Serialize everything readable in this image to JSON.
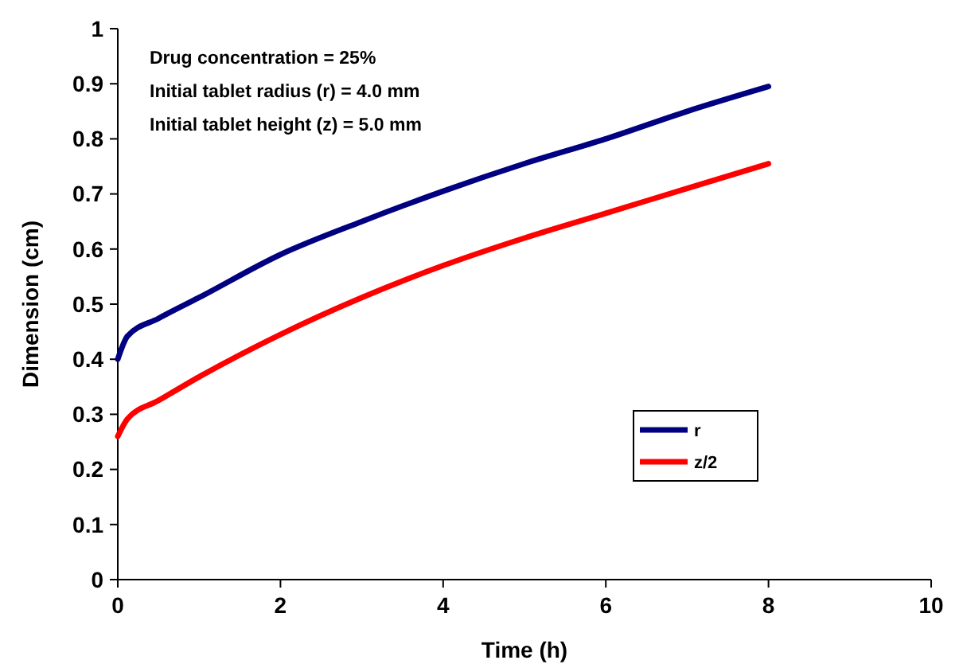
{
  "chart_data": {
    "type": "line",
    "xlabel": "Time (h)",
    "ylabel": "Dimension (cm)",
    "annotations": [
      "Drug concentration = 25%",
      "Initial tablet radius (r) = 4.0 mm",
      "Initial tablet height (z) = 5.0 mm"
    ],
    "x": [
      0,
      0.12,
      0.5,
      1,
      2,
      3,
      4,
      5,
      6,
      7,
      8
    ],
    "series": [
      {
        "name": "r",
        "color": "#000080",
        "values": [
          0.4,
          0.442,
          0.474,
          0.512,
          0.59,
          0.65,
          0.705,
          0.755,
          0.8,
          0.85,
          0.895
        ]
      },
      {
        "name": "z/2",
        "color": "#ff0000",
        "values": [
          0.26,
          0.292,
          0.325,
          0.368,
          0.445,
          0.512,
          0.57,
          0.62,
          0.665,
          0.71,
          0.755
        ]
      }
    ],
    "xlim": [
      0,
      10
    ],
    "xticks": [
      0,
      2,
      4,
      6,
      8,
      10
    ],
    "ylim": [
      0,
      1
    ],
    "yticks": [
      0,
      0.1,
      0.2,
      0.3,
      0.4,
      0.5,
      0.6,
      0.7,
      0.8,
      0.9,
      1
    ],
    "grid": false,
    "legend": "right",
    "marker": "none",
    "line_style": "solid"
  }
}
